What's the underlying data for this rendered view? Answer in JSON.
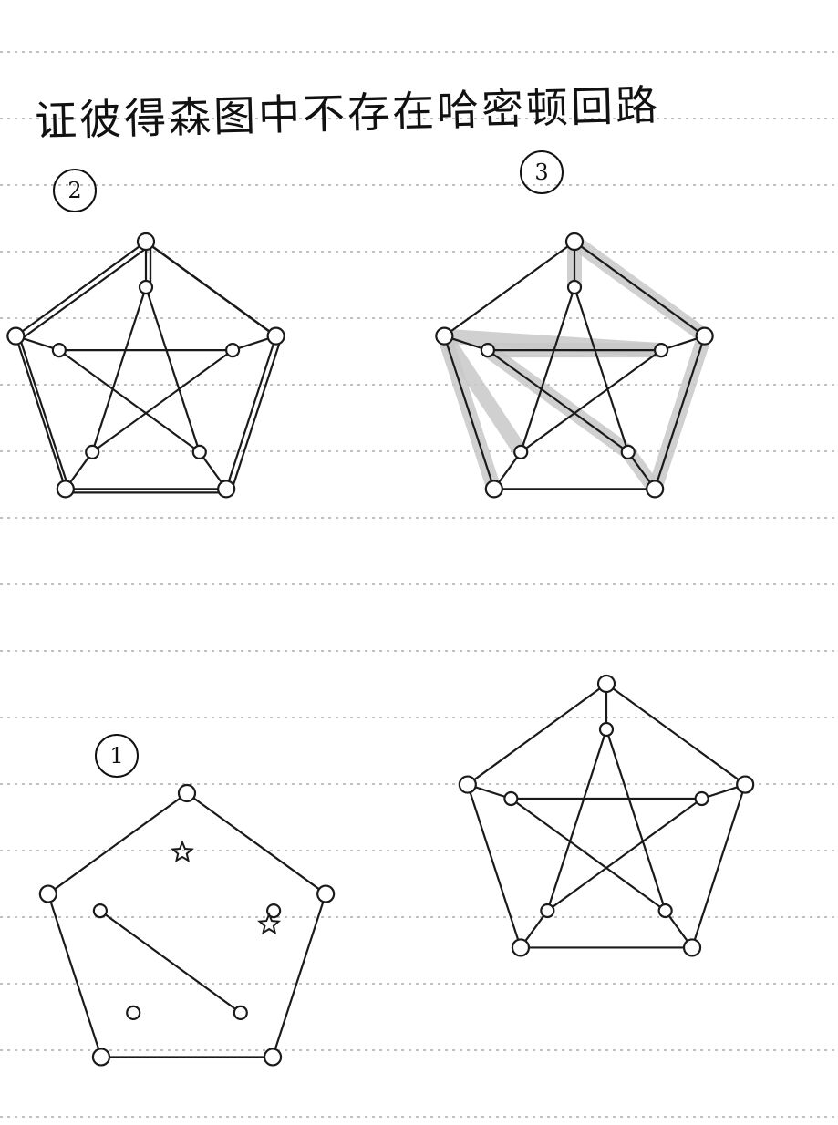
{
  "title": "证彼得森图中不存在哈密顿回路",
  "case_labels": {
    "case_1": "1",
    "case_2": "2",
    "case_3": "3"
  },
  "graph": {
    "vertices": [
      "o1",
      "o2",
      "o3",
      "o4",
      "o5",
      "i1",
      "i2",
      "i3",
      "i4",
      "i5"
    ],
    "edges": [
      [
        "o1",
        "o2"
      ],
      [
        "o2",
        "o3"
      ],
      [
        "o3",
        "o4"
      ],
      [
        "o4",
        "o5"
      ],
      [
        "o5",
        "o1"
      ],
      [
        "o1",
        "i1"
      ],
      [
        "o2",
        "i2"
      ],
      [
        "o3",
        "i3"
      ],
      [
        "o4",
        "i4"
      ],
      [
        "o5",
        "i5"
      ],
      [
        "i1",
        "i3"
      ],
      [
        "i3",
        "i5"
      ],
      [
        "i5",
        "i2"
      ],
      [
        "i2",
        "i4"
      ],
      [
        "i4",
        "i1"
      ]
    ]
  },
  "case_2_path_edges": [
    [
      "o2",
      "o1"
    ],
    [
      "o1",
      "i1"
    ],
    [
      "i1",
      "o1"
    ],
    [
      "o1",
      "o5"
    ],
    [
      "o5",
      "o4"
    ],
    [
      "o4",
      "o3"
    ],
    [
      "o2",
      "o3"
    ]
  ],
  "case_3_highlight_edges": [
    [
      "o1",
      "i1"
    ],
    [
      "o1",
      "o2"
    ],
    [
      "o2",
      "o3"
    ],
    [
      "o3",
      "i3"
    ],
    [
      "i3",
      "i5"
    ],
    [
      "i5",
      "i2"
    ],
    [
      "i2",
      "o5"
    ],
    [
      "o5",
      "i4"
    ],
    [
      "o5",
      "o4"
    ]
  ],
  "case_1_markers": [
    "star-mark",
    "star-mark"
  ],
  "colors": {
    "ink": "#1a1a1a",
    "highlight": "#c8c8c8",
    "ruled_line": "#9a9a9a"
  }
}
